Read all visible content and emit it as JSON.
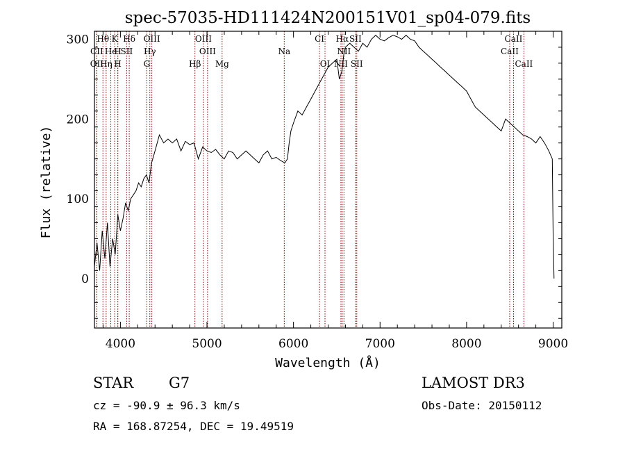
{
  "chart_data": {
    "type": "line",
    "title": "spec-57035-HD111424N200151V01_sp04-079.fits",
    "xlabel": "Wavelength (Å)",
    "ylabel": "Flux (relative)",
    "xlim": [
      3700,
      9100
    ],
    "ylim": [
      -62,
      310
    ],
    "xticks": [
      4000,
      5000,
      6000,
      7000,
      8000,
      9000
    ],
    "xtick_labels": [
      "4000",
      "5000",
      "6000",
      "7000",
      "8000",
      "9000"
    ],
    "yticks": [
      0,
      100,
      200,
      300
    ],
    "ytick_labels": [
      "0",
      "100",
      "200",
      "300"
    ],
    "grid": false,
    "line_color": "#000000",
    "marker_color": "#8b0000",
    "series": [
      {
        "name": "flux",
        "x": [
          3700,
          3730,
          3760,
          3790,
          3820,
          3850,
          3880,
          3910,
          3940,
          3970,
          4000,
          4030,
          4060,
          4090,
          4120,
          4150,
          4180,
          4210,
          4240,
          4270,
          4300,
          4330,
          4360,
          4400,
          4450,
          4500,
          4550,
          4600,
          4650,
          4700,
          4750,
          4800,
          4850,
          4900,
          4950,
          5000,
          5050,
          5100,
          5150,
          5200,
          5250,
          5300,
          5350,
          5400,
          5450,
          5500,
          5550,
          5600,
          5650,
          5700,
          5750,
          5800,
          5850,
          5900,
          5930,
          5950,
          5970,
          6000,
          6050,
          6100,
          6150,
          6200,
          6250,
          6300,
          6350,
          6400,
          6450,
          6500,
          6530,
          6560,
          6580,
          6600,
          6650,
          6700,
          6750,
          6800,
          6850,
          6900,
          6950,
          7000,
          7050,
          7100,
          7150,
          7200,
          7250,
          7300,
          7350,
          7400,
          7450,
          7500,
          7550,
          7600,
          7650,
          7700,
          7750,
          7800,
          7850,
          7900,
          7950,
          8000,
          8050,
          8100,
          8150,
          8200,
          8250,
          8300,
          8350,
          8400,
          8450,
          8500,
          8550,
          8600,
          8650,
          8700,
          8750,
          8800,
          8850,
          8900,
          8950,
          8990,
          9000,
          9010
        ],
        "y": [
          15,
          45,
          10,
          60,
          25,
          70,
          15,
          50,
          30,
          80,
          60,
          75,
          95,
          85,
          100,
          105,
          110,
          120,
          115,
          125,
          130,
          120,
          145,
          160,
          180,
          170,
          175,
          170,
          175,
          160,
          172,
          168,
          170,
          150,
          165,
          160,
          158,
          162,
          155,
          150,
          160,
          158,
          150,
          155,
          160,
          155,
          150,
          145,
          155,
          160,
          150,
          152,
          148,
          145,
          150,
          170,
          185,
          195,
          210,
          205,
          215,
          225,
          235,
          245,
          255,
          265,
          270,
          275,
          250,
          260,
          280,
          290,
          295,
          290,
          285,
          295,
          290,
          300,
          305,
          300,
          298,
          302,
          305,
          303,
          300,
          305,
          300,
          298,
          290,
          285,
          280,
          275,
          270,
          265,
          260,
          255,
          250,
          245,
          240,
          235,
          225,
          215,
          210,
          205,
          200,
          195,
          190,
          185,
          200,
          195,
          190,
          185,
          180,
          178,
          175,
          170,
          178,
          170,
          160,
          150,
          55,
          0
        ]
      }
    ],
    "spectral_lines": [
      {
        "label": "Hθ",
        "x": 3798,
        "row": 1
      },
      {
        "label": "K",
        "x": 3934,
        "row": 1
      },
      {
        "label": "Hδ",
        "x": 4102,
        "row": 1
      },
      {
        "label": "OIII",
        "x": 4363,
        "row": 1
      },
      {
        "label": "OIII",
        "x": 4959,
        "row": 1
      },
      {
        "label": "CI",
        "x": 6300,
        "row": 1
      },
      {
        "label": "Hα",
        "x": 6563,
        "row": 1
      },
      {
        "label": "SII",
        "x": 6716,
        "row": 1
      },
      {
        "label": "CaII",
        "x": 8542,
        "row": 1
      },
      {
        "label": "CII",
        "x": 3727,
        "row": 2
      },
      {
        "label": "He",
        "x": 3889,
        "row": 2
      },
      {
        "label": "H",
        "x": 3970,
        "row": 2
      },
      {
        "label": "SII",
        "x": 4072,
        "row": 2
      },
      {
        "label": "Hγ",
        "x": 4340,
        "row": 2
      },
      {
        "label": "OIII",
        "x": 5007,
        "row": 2
      },
      {
        "label": "Na",
        "x": 5893,
        "row": 2
      },
      {
        "label": "NII",
        "x": 6583,
        "row": 2
      },
      {
        "label": "CaII",
        "x": 8498,
        "row": 2
      },
      {
        "label": "OII",
        "x": 3727,
        "row": 3
      },
      {
        "label": "Hη",
        "x": 3835,
        "row": 3
      },
      {
        "label": "H",
        "x": 3970,
        "row": 3
      },
      {
        "label": "G",
        "x": 4305,
        "row": 3
      },
      {
        "label": "Hβ",
        "x": 4861,
        "row": 3
      },
      {
        "label": "Mg",
        "x": 5175,
        "row": 3
      },
      {
        "label": "OI",
        "x": 6364,
        "row": 3
      },
      {
        "label": "NII",
        "x": 6548,
        "row": 3
      },
      {
        "label": "SII",
        "x": 6731,
        "row": 3
      },
      {
        "label": "CaII",
        "x": 8662,
        "row": 3
      }
    ]
  },
  "footer": {
    "object_class": "STAR",
    "subclass": "G7",
    "survey": "LAMOST DR3",
    "redshift": "cz = -90.9 ± 96.3 km/s",
    "obs_date": "Obs-Date: 20150112",
    "coords": "RA = 168.87254, DEC =  19.49519"
  }
}
